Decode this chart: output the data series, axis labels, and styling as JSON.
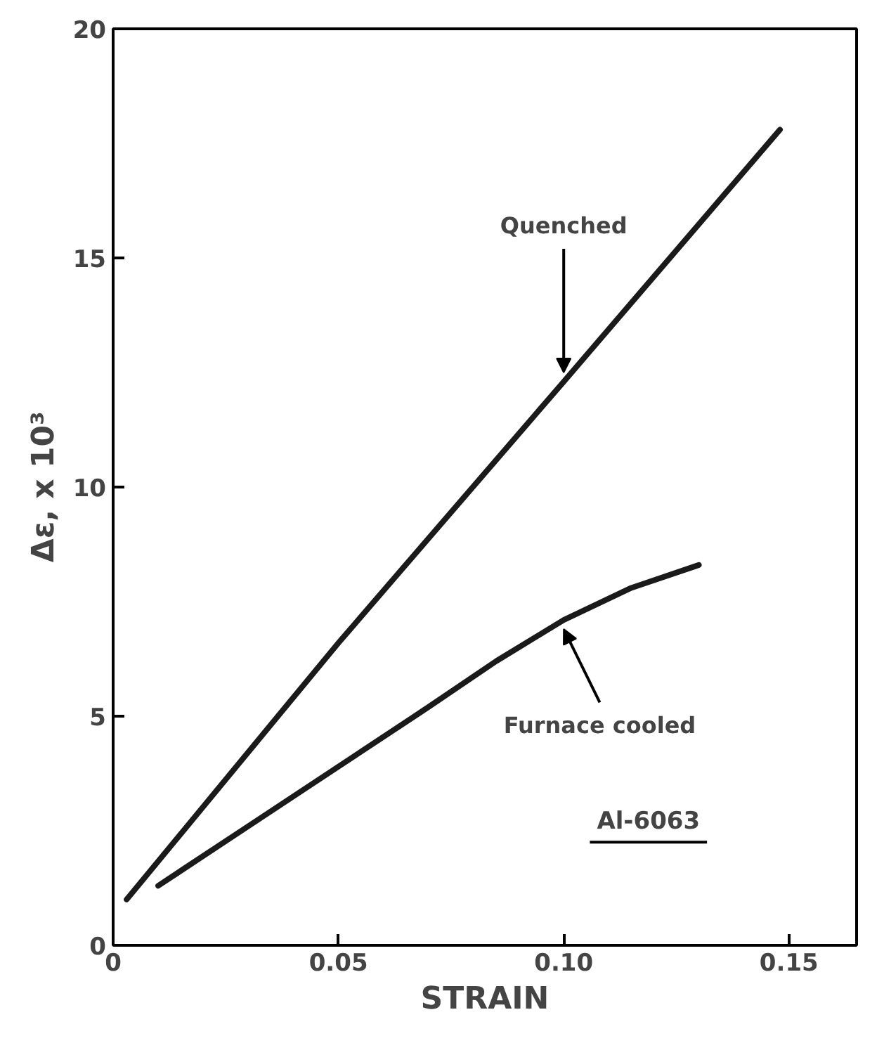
{
  "chart_data": {
    "type": "line",
    "xlabel": "STRAIN",
    "ylabel": "Δε, x 10³",
    "xlim": [
      0,
      0.165
    ],
    "ylim": [
      0,
      20
    ],
    "xticks": [
      0,
      {
        "value": 0.05,
        "label": "0.05"
      },
      {
        "value": 0.1,
        "label": "0.10"
      },
      {
        "value": 0.15,
        "label": "0.15"
      }
    ],
    "yticks": [
      0,
      5,
      10,
      15,
      20
    ],
    "grid": false,
    "marker": "none",
    "line_style": "solid",
    "series": [
      {
        "name": "Quenched",
        "color": "#1a1a1a",
        "x": [
          0.003,
          0.05,
          0.1,
          0.148
        ],
        "values": [
          1.0,
          6.6,
          12.3,
          17.8
        ]
      },
      {
        "name": "Furnace cooled",
        "color": "#1a1a1a",
        "x": [
          0.01,
          0.03,
          0.05,
          0.07,
          0.085,
          0.1,
          0.115,
          0.13
        ],
        "values": [
          1.3,
          2.6,
          3.9,
          5.2,
          6.2,
          7.1,
          7.8,
          8.3
        ]
      }
    ],
    "annotations": [
      "Al-6063"
    ]
  }
}
